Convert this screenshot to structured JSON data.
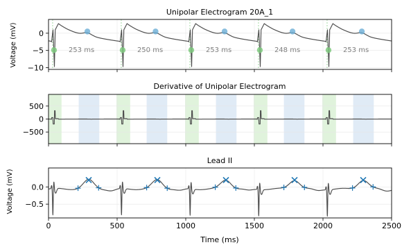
{
  "chart_data": [
    {
      "type": "line",
      "panel": "unipolar",
      "title": "Unipolar Electrogram 20A_1",
      "ylabel": "Voltage (mV)",
      "xlim": [
        0,
        2500
      ],
      "ylim": [
        -10.5,
        4
      ],
      "yticks": [
        0,
        -5,
        -10
      ],
      "ytick_labels": [
        "0",
        "−5",
        "−10"
      ],
      "grid": true,
      "activation_times_ms": [
        30,
        530,
        1030,
        1530,
        2030
      ],
      "activation_voltage_mv": -4.5,
      "repolarization_times_ms": [
        283,
        780,
        1283,
        1778,
        2283
      ],
      "repolarization_voltage_mv": 0.5,
      "intervals_ms": [
        253,
        250,
        253,
        248,
        253
      ],
      "interval_labels": [
        "253 ms",
        "250 ms",
        "253 ms",
        "248 ms",
        "253 ms"
      ],
      "colors": {
        "trace": "#4d4d4d",
        "activation_marker": "#7fc97f",
        "repolarization_marker": "#6baed6"
      }
    },
    {
      "type": "line",
      "panel": "derivative",
      "title": "Derivative of Unipolar Electrogram",
      "ylabel": "",
      "xlim": [
        0,
        2500
      ],
      "ylim": [
        -950,
        950
      ],
      "yticks": [
        500,
        0,
        -500
      ],
      "ytick_labels": [
        "500",
        "0",
        "−500"
      ],
      "grid": true,
      "activation_windows_ms": [
        [
          0,
          95
        ],
        [
          495,
          595
        ],
        [
          995,
          1095
        ],
        [
          1495,
          1595
        ],
        [
          1995,
          2095
        ]
      ],
      "repolarization_windows_ms": [
        [
          220,
          370
        ],
        [
          715,
          865
        ],
        [
          1220,
          1370
        ],
        [
          1715,
          1865
        ],
        [
          2220,
          2370
        ]
      ],
      "colors": {
        "trace": "#4d4d4d",
        "activation_window": "#c7e9c0",
        "repolarization_window": "#c6dbef"
      }
    },
    {
      "type": "line",
      "panel": "lead_ii",
      "title": "Lead II",
      "ylabel": "Voltage (mV)",
      "xlabel": "Time (ms)",
      "xlim": [
        0,
        2500
      ],
      "xticks": [
        0,
        500,
        1000,
        1500,
        2000,
        2500
      ],
      "ylim": [
        -0.9,
        0.55
      ],
      "yticks": [
        0.0,
        -0.5
      ],
      "ytick_labels": [
        "0.0",
        "−0.5"
      ],
      "grid": true,
      "t_peak_times_ms": [
        293,
        793,
        1293,
        1793,
        2293
      ],
      "t_peak_voltage_mv": 0.2,
      "t_window_marks_ms": [
        [
          215,
          365
        ],
        [
          715,
          865
        ],
        [
          1215,
          1365
        ],
        [
          1715,
          1865
        ],
        [
          2215,
          2365
        ]
      ],
      "colors": {
        "trace": "#4d4d4d",
        "marker": "#1f77b4"
      }
    }
  ]
}
